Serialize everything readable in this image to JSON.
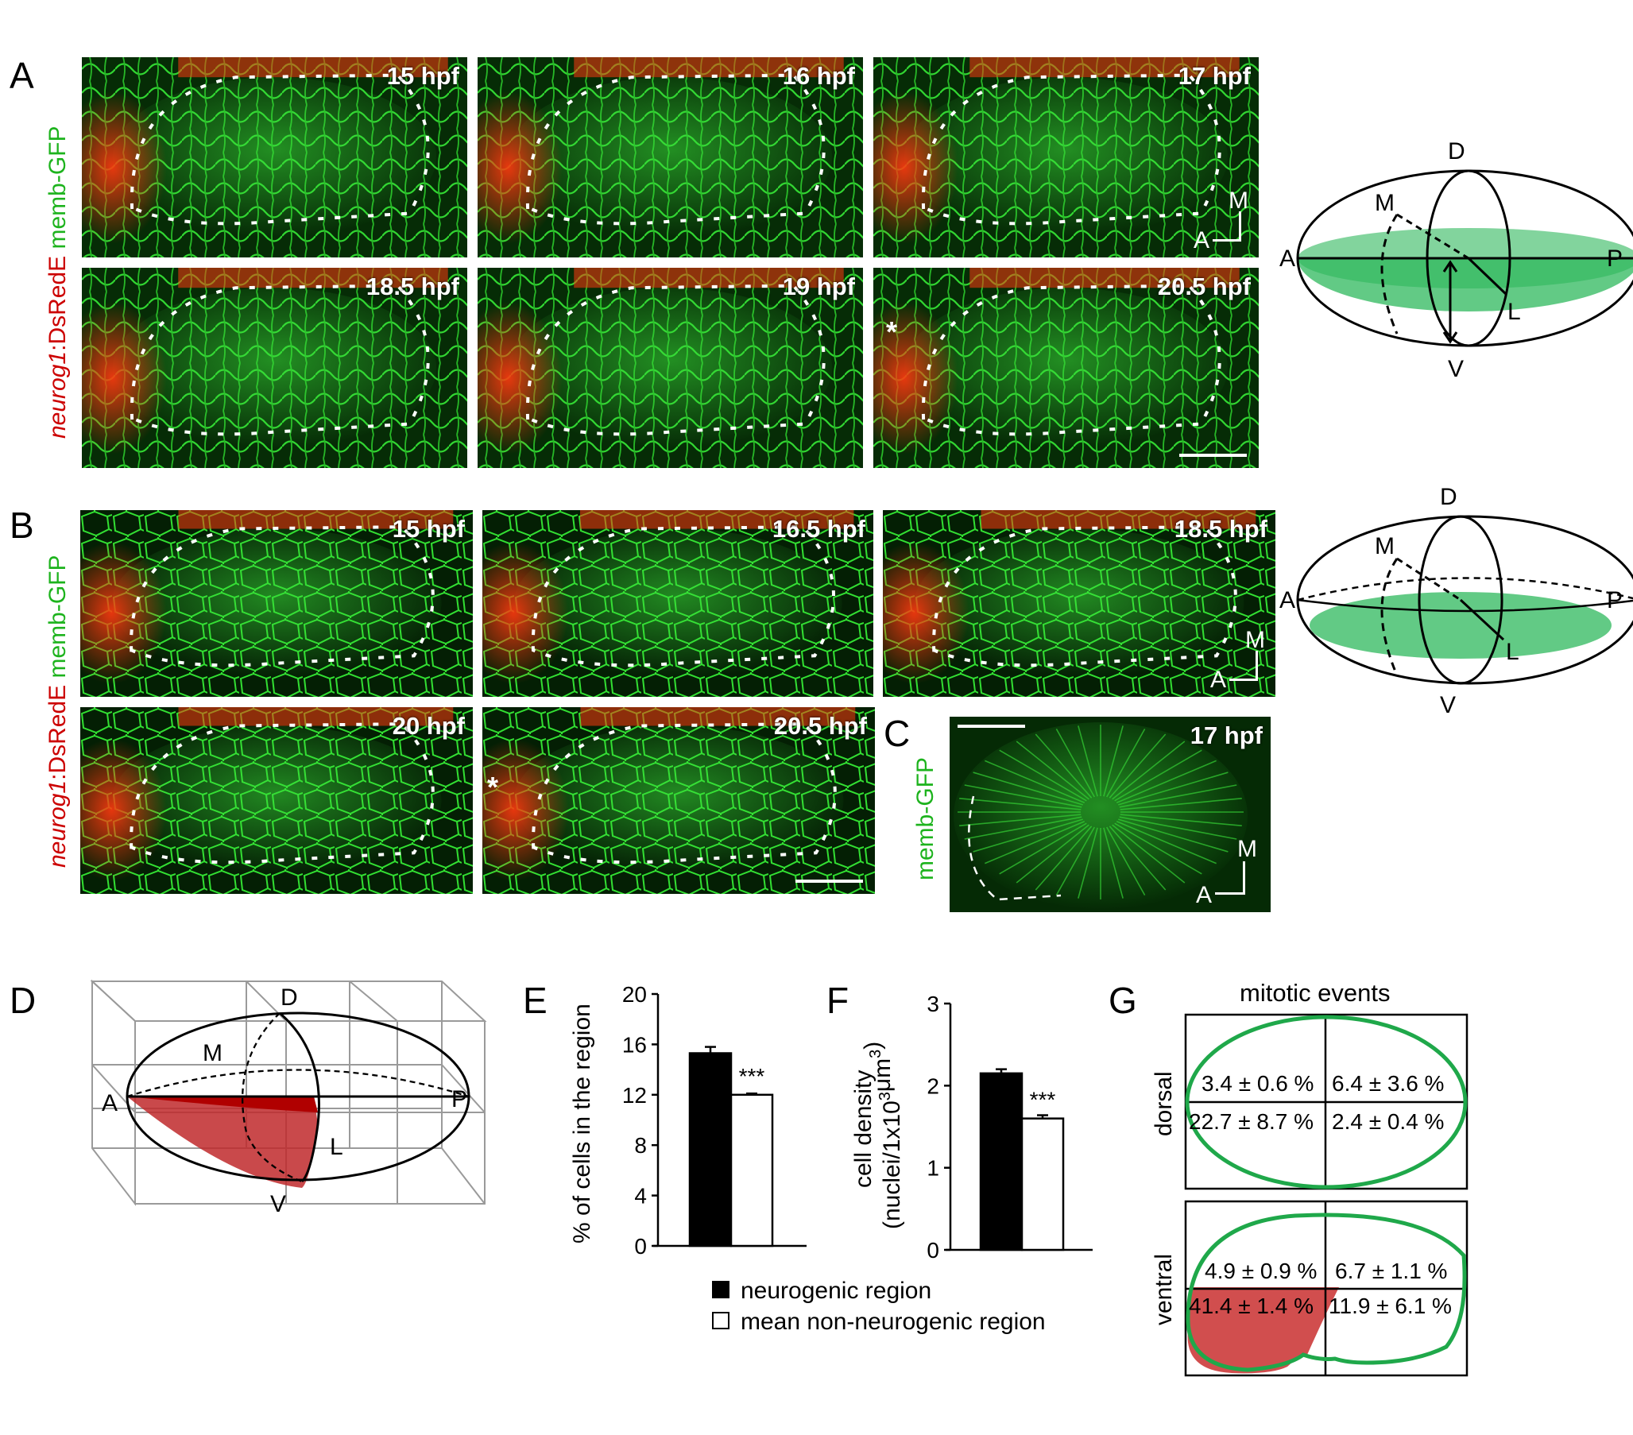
{
  "panels": {
    "A": "A",
    "B": "B",
    "C": "C",
    "D": "D",
    "E": "E",
    "F": "F",
    "G": "G"
  },
  "stain": {
    "gene": "neurog1",
    "reporter": ":DsRedE",
    "membrane": " memb-GFP",
    "membrane_only": "memb-GFP"
  },
  "panel_A": {
    "timepoints": [
      "15 hpf",
      "16 hpf",
      "17 hpf",
      "18.5 hpf",
      "19 hpf",
      "20.5 hpf"
    ]
  },
  "panel_B": {
    "timepoints": [
      "15 hpf",
      "16.5 hpf",
      "18.5 hpf",
      "20 hpf",
      "20.5 hpf"
    ]
  },
  "panel_C": {
    "timepoint": "17 hpf"
  },
  "asterisk": "*",
  "orientation": {
    "medial": "M",
    "anterior": "A"
  },
  "schematic_axes": {
    "D": "D",
    "V": "V",
    "A": "A",
    "P": "P",
    "M": "M",
    "L": "L"
  },
  "colors": {
    "membrane_green": "#1db31d",
    "neurog_red": "#cc0000",
    "region_fill": "#2eb85c",
    "neurogenic_fill": "#c0292b"
  },
  "legend": {
    "neurogenic": "neurogenic region",
    "non_neurogenic": "mean non-neurogenic region"
  },
  "significance": "***",
  "chart_data": [
    {
      "panel": "E",
      "type": "bar",
      "categories": [
        "neurogenic region",
        "mean non-neurogenic region"
      ],
      "values": [
        15.3,
        12.0
      ],
      "errors": [
        0.5,
        0.1
      ],
      "ylabel": "% of cells in the region",
      "ylim": [
        0,
        20
      ],
      "yticks": [
        "0",
        "4",
        "8",
        "12",
        "16",
        "20"
      ],
      "fills": [
        "#000000",
        "#ffffff"
      ]
    },
    {
      "panel": "F",
      "type": "bar",
      "categories": [
        "neurogenic region",
        "mean non-neurogenic region"
      ],
      "values": [
        2.15,
        1.6
      ],
      "errors": [
        0.05,
        0.04
      ],
      "ylabel_line1": "cell density",
      "ylabel_line2": "(nuclei/1x10",
      "ylabel_sup1": "3",
      "ylabel_mid": "μm",
      "ylabel_sup2": "3",
      "ylabel_end": ")",
      "ylim": [
        0,
        3
      ],
      "yticks": [
        "0",
        "1",
        "2",
        "3"
      ],
      "fills": [
        "#000000",
        "#ffffff"
      ]
    }
  ],
  "panel_G": {
    "title": "mitotic events",
    "dorsal": {
      "label": "dorsal",
      "top_left": "3.4 ± 0.6 %",
      "top_right": "6.4 ± 3.6 %",
      "bottom_left": "22.7 ± 8.7 %",
      "bottom_right": "2.4 ± 0.4 %"
    },
    "ventral": {
      "label": "ventral",
      "top_left": "4.9 ± 0.9 %",
      "top_right": "6.7 ± 1.1 %",
      "bottom_left": "41.4 ± 1.4 %",
      "bottom_right": "11.9 ± 6.1 %"
    }
  }
}
